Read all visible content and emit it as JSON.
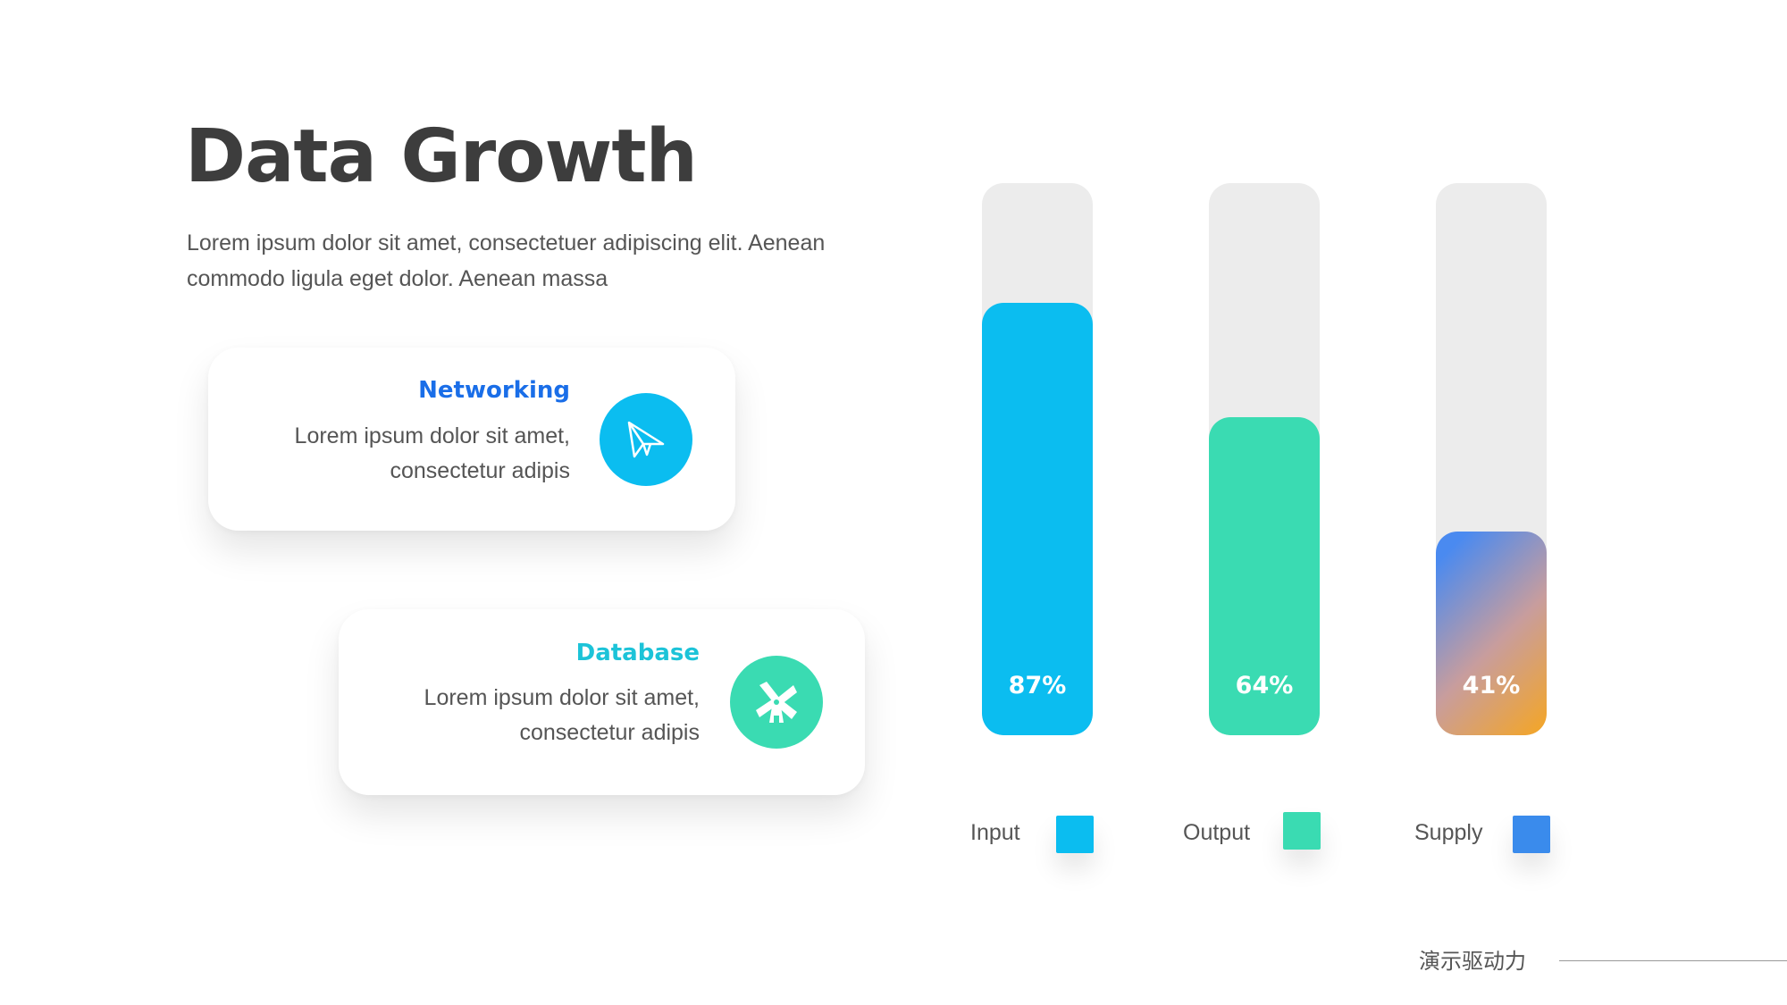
{
  "title": "Data Growth",
  "description": "Lorem ipsum dolor sit amet, consectetuer adipiscing elit. Aenean commodo ligula eget dolor. Aenean massa",
  "cards": [
    {
      "title": "Networking",
      "text_line1": "Lorem ipsum dolor sit amet,",
      "text_line2": "consectetur adipis",
      "title_color": "#1a6ee8",
      "icon": "paper-plane-icon",
      "icon_bg": "#0bbdf0"
    },
    {
      "title": "Database",
      "text_line1": "Lorem ipsum dolor sit amet,",
      "text_line2": "consectetur adipis",
      "title_color": "#1cc3d8",
      "icon": "windmill-icon",
      "icon_bg": "#3adbb2"
    }
  ],
  "chart_data": {
    "type": "bar",
    "categories": [
      "Input",
      "Output",
      "Supply"
    ],
    "values": [
      87,
      64,
      41
    ],
    "value_labels": [
      "87%",
      "64%",
      "41%"
    ],
    "ylim": [
      0,
      100
    ],
    "grid": false,
    "legend": "bottom",
    "colors": [
      "#0bbdf0",
      "#3adbb2",
      "#3a8bec"
    ],
    "supply_gradient": [
      "#4a8af0",
      "#f5a623"
    ],
    "track_color": "#ececec"
  },
  "footer": {
    "text": "演示驱动力"
  }
}
